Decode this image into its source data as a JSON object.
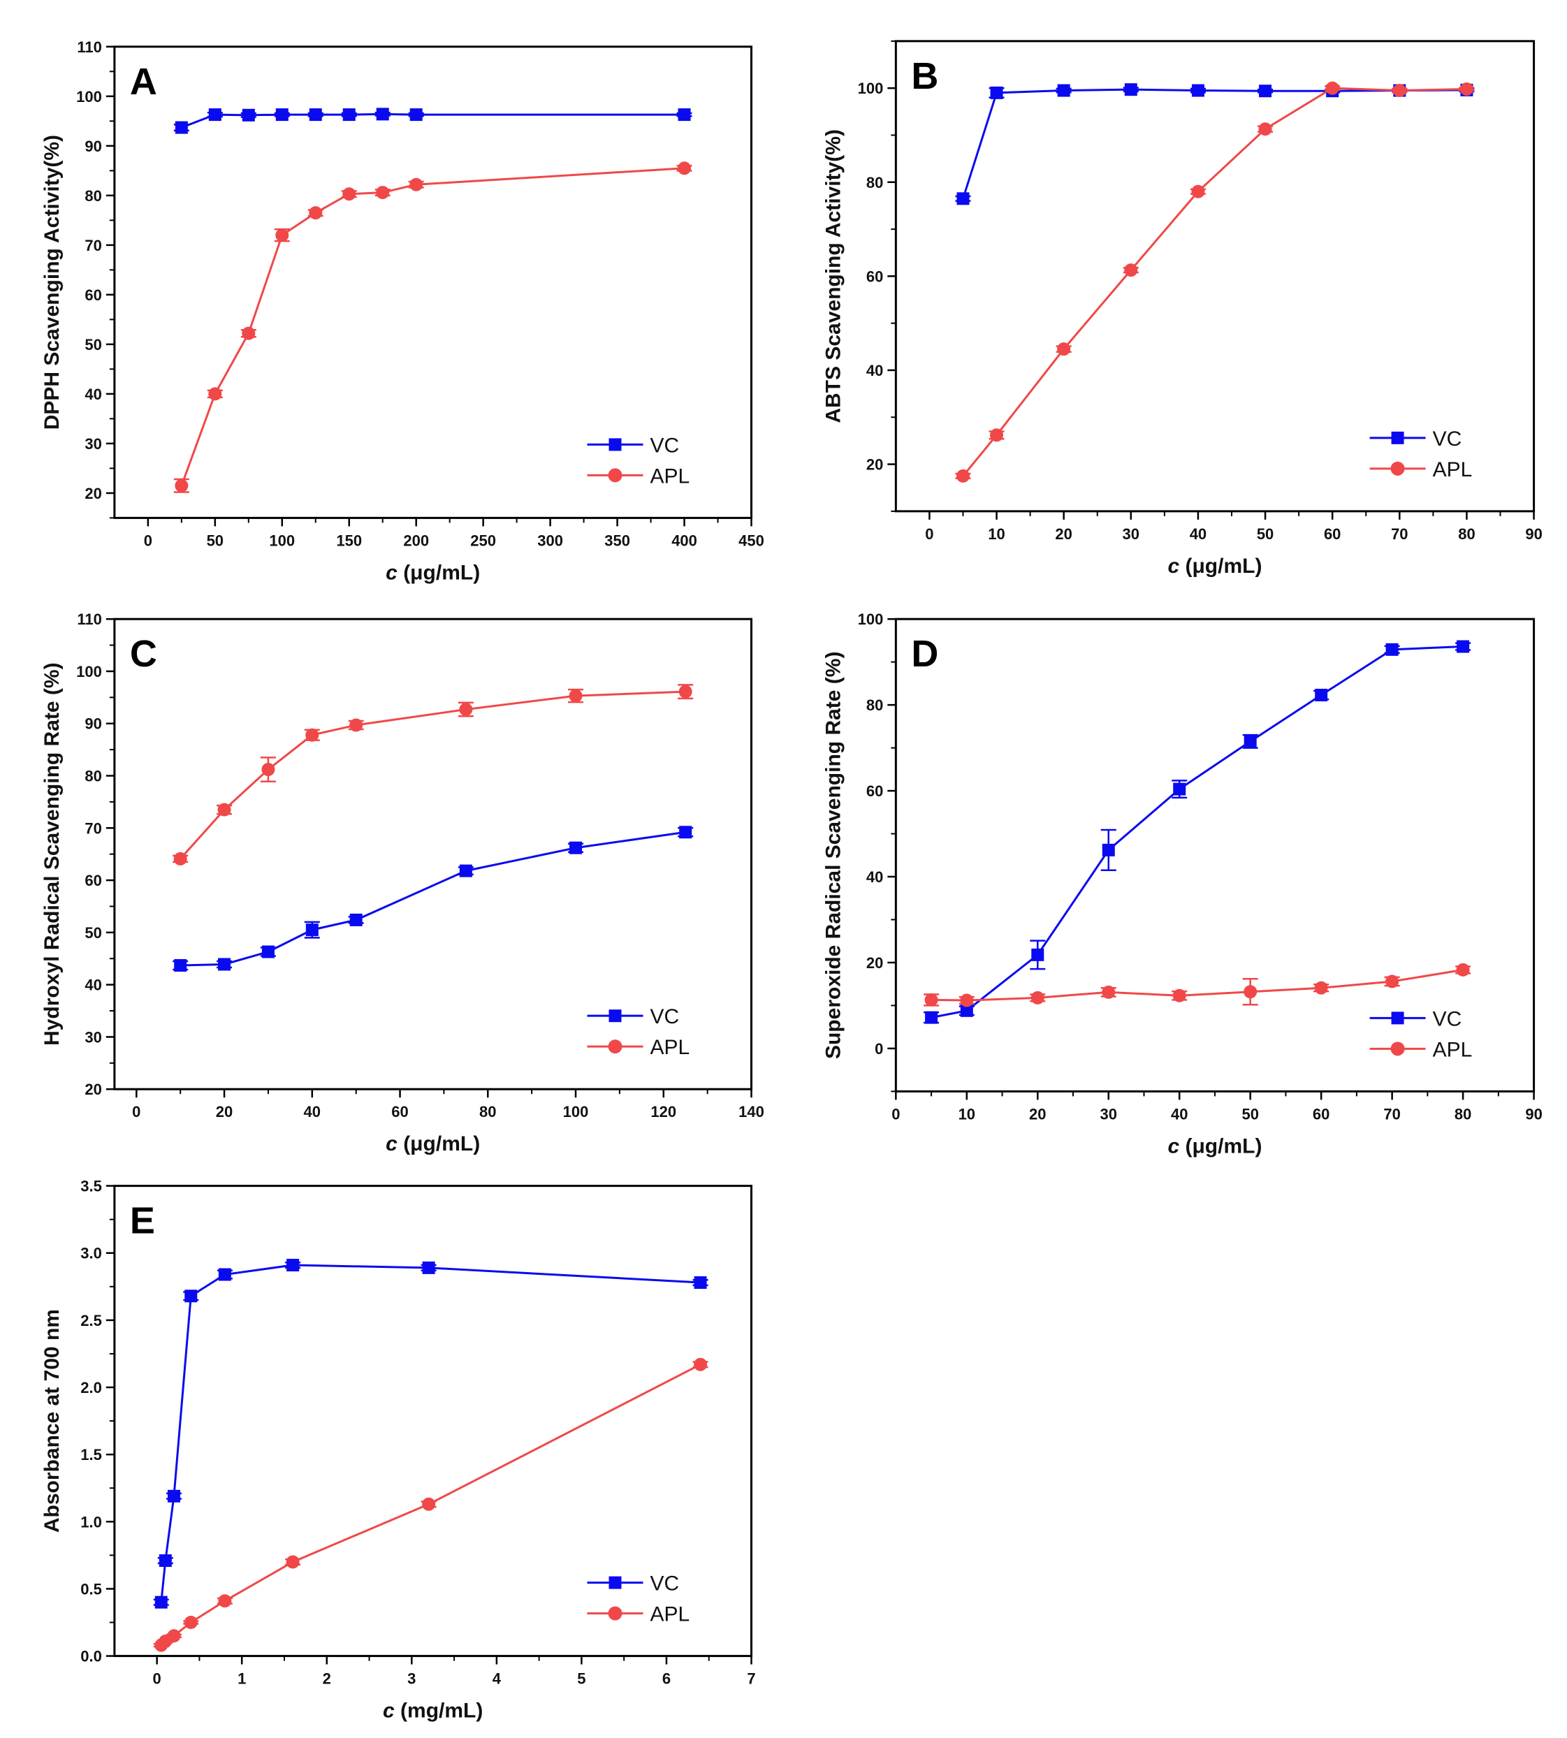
{
  "colors": {
    "VC": "#0a0af0",
    "APL": "#f04848"
  },
  "chart_data": [
    {
      "type": "line",
      "panel": "A",
      "xlabel_italic": "c",
      "xlabel_unit": " (μg/mL)",
      "ylabel": "DPPH Scavenging Activity(%)",
      "xlim": [
        -25,
        450
      ],
      "ylim": [
        15,
        110
      ],
      "xticks": [
        0,
        50,
        100,
        150,
        200,
        250,
        300,
        350,
        400,
        450
      ],
      "yticks": [
        20,
        30,
        40,
        50,
        60,
        70,
        80,
        90,
        100,
        110
      ],
      "x": [
        25,
        50,
        75,
        100,
        125,
        150,
        175,
        200,
        400
      ],
      "series": [
        {
          "name": "VC",
          "marker": "square",
          "values": [
            93.7,
            96.3,
            96.2,
            96.3,
            96.3,
            96.3,
            96.4,
            96.3,
            96.3
          ],
          "err": [
            0.6,
            0.4,
            0.4,
            0.3,
            0.3,
            0.3,
            0.3,
            0.3,
            0.3
          ]
        },
        {
          "name": "APL",
          "marker": "circle",
          "values": [
            21.5,
            40.0,
            52.2,
            72.0,
            76.5,
            80.3,
            80.6,
            82.2,
            85.5
          ],
          "err": [
            1.3,
            0.7,
            0.7,
            1.2,
            0.6,
            0.6,
            0.6,
            0.6,
            0.5
          ]
        }
      ],
      "legend": "bottom-right"
    },
    {
      "type": "line",
      "panel": "B",
      "xlabel_italic": "c",
      "xlabel_unit": " (μg/mL)",
      "ylabel": "ABTS Scavenging Activity(%)",
      "xlim": [
        -5,
        90
      ],
      "ylim": [
        10,
        110
      ],
      "xticks": [
        0,
        10,
        20,
        30,
        40,
        50,
        60,
        70,
        80,
        90
      ],
      "yticks": [
        20,
        40,
        60,
        80,
        100
      ],
      "x": [
        5,
        10,
        20,
        30,
        40,
        50,
        60,
        70,
        80
      ],
      "series": [
        {
          "name": "VC",
          "marker": "square",
          "values": [
            76.5,
            99.0,
            99.5,
            99.7,
            99.5,
            99.4,
            99.4,
            99.5,
            99.6
          ],
          "err": [
            0.5,
            1.0,
            0.4,
            0.4,
            0.4,
            0.3,
            0.3,
            0.3,
            0.3
          ]
        },
        {
          "name": "APL",
          "marker": "circle",
          "values": [
            17.5,
            26.2,
            44.5,
            61.3,
            78.0,
            91.3,
            100.0,
            99.5,
            99.8
          ],
          "err": [
            0.5,
            0.8,
            0.6,
            0.5,
            0.5,
            0.6,
            0.4,
            0.4,
            0.3
          ]
        }
      ],
      "legend": "bottom-right"
    },
    {
      "type": "line",
      "panel": "C",
      "xlabel_italic": "c",
      "xlabel_unit": " (μg/mL)",
      "ylabel": "Hydroxyl Radical Scavenging Rate (%)",
      "xlim": [
        -5,
        140
      ],
      "ylim": [
        20,
        110
      ],
      "xticks": [
        0,
        20,
        40,
        60,
        80,
        100,
        120,
        140
      ],
      "yticks": [
        20,
        30,
        40,
        50,
        60,
        70,
        80,
        90,
        100,
        110
      ],
      "x": [
        10,
        20,
        30,
        40,
        50,
        75,
        100,
        125
      ],
      "series": [
        {
          "name": "VC",
          "marker": "square",
          "values": [
            43.7,
            43.9,
            46.3,
            50.5,
            52.4,
            61.8,
            66.2,
            69.2
          ],
          "err": [
            0.8,
            0.6,
            0.8,
            1.5,
            0.6,
            0.7,
            0.8,
            0.8
          ]
        },
        {
          "name": "APL",
          "marker": "circle",
          "values": [
            64.1,
            73.5,
            81.2,
            87.8,
            89.7,
            92.7,
            95.3,
            96.1
          ],
          "err": [
            0.6,
            0.8,
            2.3,
            1.0,
            0.8,
            1.3,
            1.2,
            1.3
          ]
        }
      ],
      "legend": "bottom-right"
    },
    {
      "type": "line",
      "panel": "D",
      "xlabel_italic": "c",
      "xlabel_unit": " (μg/mL)",
      "ylabel": "Superoxide Radical Scavenging Rate (%)",
      "xlim": [
        0,
        90
      ],
      "ylim": [
        -10,
        100
      ],
      "xticks": [
        0,
        10,
        20,
        30,
        40,
        50,
        60,
        70,
        80,
        90
      ],
      "yticks": [
        0,
        20,
        40,
        60,
        80,
        100
      ],
      "x": [
        5,
        10,
        20,
        30,
        40,
        50,
        60,
        70,
        80
      ],
      "series": [
        {
          "name": "VC",
          "marker": "square",
          "values": [
            7.2,
            8.8,
            21.8,
            46.2,
            60.4,
            71.5,
            82.3,
            92.9,
            93.6
          ],
          "err": [
            1.2,
            1.0,
            3.3,
            4.7,
            2.0,
            1.5,
            1.0,
            0.8,
            0.8
          ]
        },
        {
          "name": "APL",
          "marker": "circle",
          "values": [
            11.3,
            11.2,
            11.8,
            13.1,
            12.3,
            13.2,
            14.1,
            15.6,
            18.3
          ],
          "err": [
            1.3,
            0.8,
            0.8,
            1.0,
            1.0,
            3.0,
            0.8,
            1.0,
            0.8
          ]
        }
      ],
      "legend": "bottom-right"
    },
    {
      "type": "line",
      "panel": "E",
      "xlabel_italic": "c",
      "xlabel_unit": " (mg/mL)",
      "ylabel": "Absorbance at 700 nm",
      "xlim": [
        -0.5,
        7
      ],
      "ylim": [
        0,
        3.5
      ],
      "xticks": [
        0,
        1,
        2,
        3,
        4,
        5,
        6,
        7
      ],
      "yticks": [
        0.0,
        0.5,
        1.0,
        1.5,
        2.0,
        2.5,
        3.0,
        3.5
      ],
      "ytick_decimals": 1,
      "x": [
        0.05,
        0.1,
        0.2,
        0.4,
        0.8,
        1.6,
        3.2,
        6.4
      ],
      "series": [
        {
          "name": "VC",
          "marker": "square",
          "values": [
            0.4,
            0.71,
            1.19,
            2.68,
            2.84,
            2.91,
            2.89,
            2.78
          ],
          "err": [
            0.02,
            0.02,
            0.02,
            0.03,
            0.03,
            0.02,
            0.02,
            0.02
          ]
        },
        {
          "name": "APL",
          "marker": "circle",
          "values": [
            0.08,
            0.11,
            0.15,
            0.25,
            0.41,
            0.7,
            1.13,
            2.17
          ],
          "err": [
            0.01,
            0.01,
            0.01,
            0.01,
            0.02,
            0.02,
            0.02,
            0.02
          ]
        }
      ],
      "legend": "bottom-right"
    }
  ]
}
